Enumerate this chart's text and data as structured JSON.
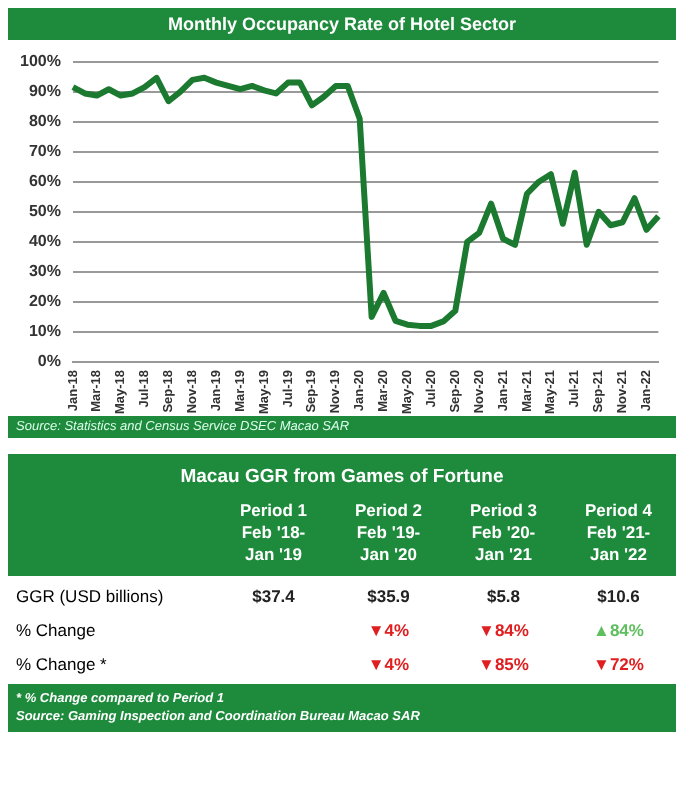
{
  "chart_data": [
    {
      "type": "line",
      "title": "Monthly Occupancy Rate of Hotel Sector",
      "categories": [
        "Jan-18",
        null,
        "Mar-18",
        null,
        "May-18",
        null,
        "Jul-18",
        null,
        "Sep-18",
        null,
        "Nov-18",
        null,
        "Jan-19",
        null,
        "Mar-19",
        null,
        "May-19",
        null,
        "Jul-19",
        null,
        "Sep-19",
        null,
        "Nov-19",
        null,
        "Jan-20",
        null,
        "Mar-20",
        null,
        "May-20",
        null,
        "Jul-20",
        null,
        "Sep-20",
        null,
        "Nov-20",
        null,
        "Jan-21",
        null,
        "Mar-21",
        null,
        "May-21",
        null,
        "Jul-21",
        null,
        "Sep-21",
        null,
        "Nov-21",
        null,
        "Jan-22",
        null
      ],
      "series": [
        {
          "color": "#1b7a30",
          "values": [
            91.5,
            89.4,
            88.7,
            90.8,
            88.7,
            89.4,
            91.5,
            94.6,
            86.8,
            90,
            93.9,
            94.6,
            93,
            91.9,
            90.8,
            91.9,
            90.4,
            89.4,
            93,
            93,
            85.4,
            88.3,
            91.9,
            91.9,
            81,
            15,
            23,
            13.7,
            12.4,
            12,
            12,
            13.5,
            17,
            40,
            43,
            52.7,
            41,
            39,
            56,
            60,
            62.5,
            46,
            63,
            39,
            50,
            45.5,
            46.5,
            54.5,
            44,
            48.5
          ]
        }
      ],
      "ylim": [
        0,
        100
      ],
      "yticks": [
        {
          "value": 0,
          "label": "0%"
        },
        {
          "value": 10,
          "label": "10%"
        },
        {
          "value": 20,
          "label": "20%"
        },
        {
          "value": 30,
          "label": "30%"
        },
        {
          "value": 40,
          "label": "40%"
        },
        {
          "value": 50,
          "label": "50%"
        },
        {
          "value": 60,
          "label": "60%"
        },
        {
          "value": 70,
          "label": "70%"
        },
        {
          "value": 80,
          "label": "80%"
        },
        {
          "value": 90,
          "label": "90%"
        },
        {
          "value": 100,
          "label": "100%"
        }
      ],
      "grid": "y",
      "legend": false,
      "marker": "none",
      "line_style": "solid",
      "annotations": [
        "Source: Statistics and Census Service DSEC Macao SAR"
      ]
    },
    {
      "type": "other",
      "title": "Macau GGR from Games of Fortune",
      "categories": [
        "Period 1\nFeb '18-\nJan '19",
        "Period 2\nFeb '19-\nJan '20",
        "Period 3\nFeb '20-\nJan '21",
        "Period 4\nFeb '21-\nJan '22"
      ],
      "y_categories": [
        "GGR (USD billions)",
        "% Change",
        "% Change *"
      ],
      "cell_labels": [
        [
          "$37.4",
          "$35.9",
          "$5.8",
          "$10.6"
        ],
        [
          null,
          "▼4%",
          "▼84%",
          "▲84%"
        ],
        [
          null,
          "▼4%",
          "▼85%",
          "▼72%"
        ]
      ],
      "colors": [
        [
          null,
          null,
          null,
          null
        ],
        [
          null,
          "#e02020",
          "#e02020",
          "#5fbf5f"
        ],
        [
          null,
          "#e02020",
          "#e02020",
          "#e02020"
        ]
      ],
      "annotations": [
        "* % Change compared to Period 1",
        "Source: Gaming Inspection and Coordination Bureau Macao SAR"
      ]
    }
  ]
}
